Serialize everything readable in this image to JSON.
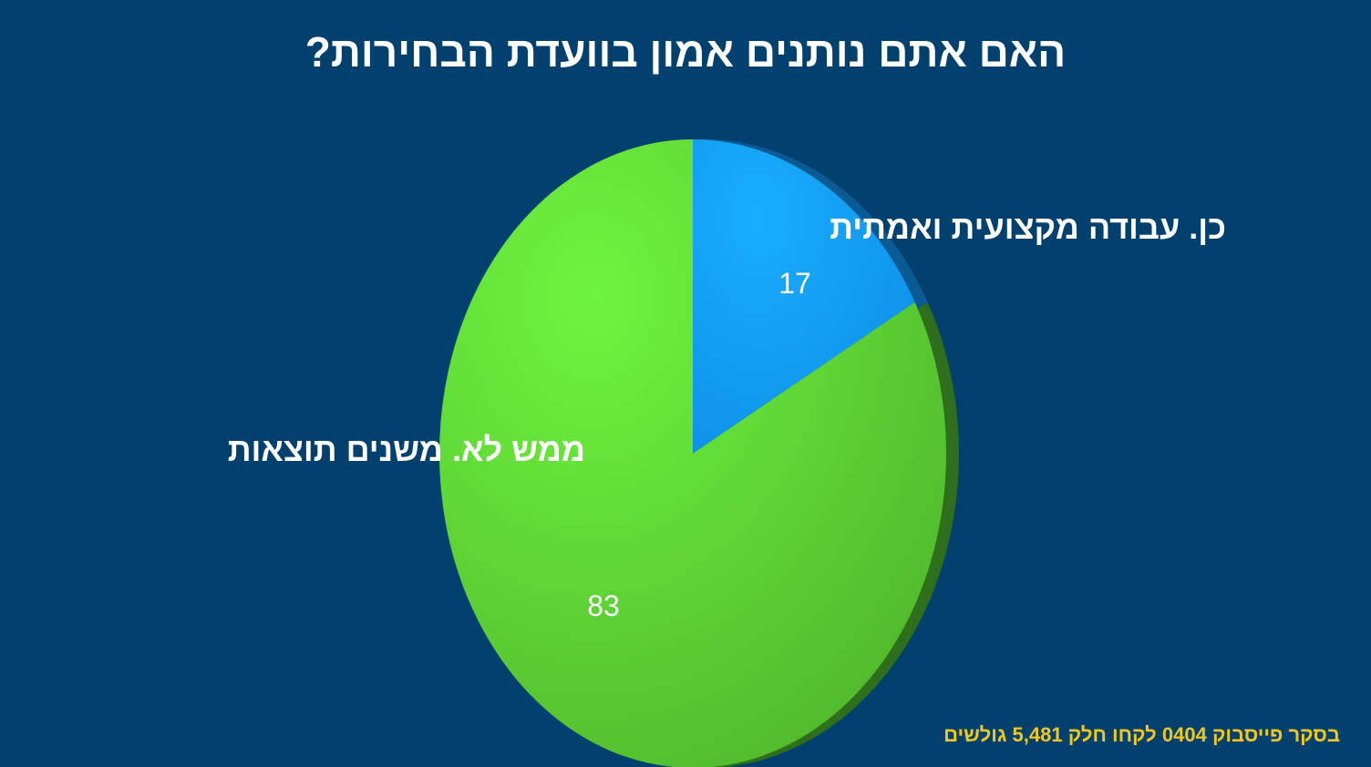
{
  "chart_data": {
    "type": "pie",
    "title": "האם אתם נותנים אמון בוועדת הבחירות?",
    "slices": [
      {
        "label": "כן. עבודה מקצועית ואמתית",
        "value": 17,
        "color": "#0fa4ff"
      },
      {
        "label": "ממש לא. משנים תוצאות",
        "value": 83,
        "color": "#5fd93a"
      }
    ]
  },
  "footnote": "בסקר פייסבוק 0404 לקחו חלק 5,481 גולשים"
}
